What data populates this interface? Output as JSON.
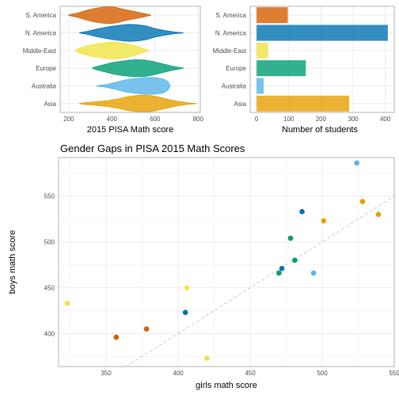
{
  "colors": {
    "region": {
      "S. America": "#D55E00",
      "N. America": "#0072B2",
      "Middle-East": "#F0E442",
      "Europe": "#009E73",
      "Australia": "#56B4E9",
      "Asia": "#E69F00"
    },
    "panel_border": "#b3b3b3",
    "grid": "#ebebeb",
    "diagonal": "#cccccc"
  },
  "chart_data": [
    {
      "type": "violin",
      "orientation": "horizontal",
      "categories": [
        "S. America",
        "N. America",
        "Middle-East",
        "Europe",
        "Australia",
        "Asia"
      ],
      "xlabel": "2015 PISA Math score",
      "xlim": [
        160,
        810
      ],
      "xticks": [
        200,
        400,
        600,
        800
      ],
      "grid": true,
      "series": [
        {
          "category": "S. America",
          "profile": [
            [
              200,
              0.03
            ],
            [
              240,
              0.25
            ],
            [
              280,
              0.55
            ],
            [
              320,
              0.8
            ],
            [
              360,
              0.95
            ],
            [
              390,
              1.0
            ],
            [
              420,
              0.9
            ],
            [
              460,
              0.65
            ],
            [
              500,
              0.45
            ],
            [
              540,
              0.25
            ],
            [
              570,
              0.08
            ],
            [
              580,
              0.02
            ]
          ]
        },
        {
          "category": "N. America",
          "profile": [
            [
              250,
              0.02
            ],
            [
              290,
              0.2
            ],
            [
              330,
              0.45
            ],
            [
              380,
              0.7
            ],
            [
              420,
              0.85
            ],
            [
              460,
              0.97
            ],
            [
              480,
              1.0
            ],
            [
              520,
              0.95
            ],
            [
              560,
              0.8
            ],
            [
              600,
              0.5
            ],
            [
              650,
              0.25
            ],
            [
              690,
              0.1
            ],
            [
              720,
              0.04
            ],
            [
              730,
              0.02
            ]
          ]
        },
        {
          "category": "Middle-East",
          "profile": [
            [
              230,
              0.03
            ],
            [
              250,
              0.3
            ],
            [
              290,
              0.6
            ],
            [
              330,
              0.8
            ],
            [
              370,
              0.93
            ],
            [
              400,
              1.0
            ],
            [
              430,
              0.97
            ],
            [
              470,
              0.8
            ],
            [
              510,
              0.55
            ],
            [
              540,
              0.3
            ],
            [
              560,
              0.1
            ],
            [
              570,
              0.02
            ]
          ]
        },
        {
          "category": "Europe",
          "profile": [
            [
              310,
              0.03
            ],
            [
              330,
              0.2
            ],
            [
              370,
              0.45
            ],
            [
              410,
              0.7
            ],
            [
              450,
              0.85
            ],
            [
              480,
              0.95
            ],
            [
              510,
              1.0
            ],
            [
              550,
              0.97
            ],
            [
              590,
              0.8
            ],
            [
              630,
              0.55
            ],
            [
              670,
              0.3
            ],
            [
              710,
              0.1
            ],
            [
              730,
              0.02
            ]
          ]
        },
        {
          "category": "Australia",
          "profile": [
            [
              330,
              0.02
            ],
            [
              370,
              0.15
            ],
            [
              400,
              0.3
            ],
            [
              430,
              0.5
            ],
            [
              460,
              0.7
            ],
            [
              500,
              0.85
            ],
            [
              540,
              0.95
            ],
            [
              570,
              1.0
            ],
            [
              610,
              0.95
            ],
            [
              640,
              0.8
            ],
            [
              660,
              0.5
            ],
            [
              670,
              0.02
            ]
          ]
        },
        {
          "category": "Asia",
          "profile": [
            [
              250,
              0.02
            ],
            [
              270,
              0.1
            ],
            [
              320,
              0.2
            ],
            [
              380,
              0.35
            ],
            [
              430,
              0.55
            ],
            [
              470,
              0.8
            ],
            [
              510,
              0.95
            ],
            [
              540,
              1.0
            ],
            [
              580,
              0.95
            ],
            [
              620,
              0.75
            ],
            [
              660,
              0.5
            ],
            [
              700,
              0.3
            ],
            [
              750,
              0.1
            ],
            [
              790,
              0.02
            ]
          ]
        }
      ]
    },
    {
      "type": "bar",
      "orientation": "horizontal",
      "categories": [
        "S. America",
        "N. America",
        "Middle-East",
        "Europe",
        "Australia",
        "Asia"
      ],
      "values": [
        97,
        408,
        36,
        153,
        22,
        288
      ],
      "xlabel": "Number of students",
      "xlim": [
        -20,
        428
      ],
      "xticks": [
        0,
        100,
        200,
        300,
        400
      ],
      "grid": true
    },
    {
      "type": "scatter",
      "title": "Gender Gaps in PISA 2015 Math Scores",
      "xlabel": "girls math score",
      "ylabel": "boys math score",
      "xlim": [
        317,
        550
      ],
      "ylim": [
        364,
        592
      ],
      "xticks": [
        350,
        400,
        450,
        500,
        550
      ],
      "yticks": [
        400,
        450,
        500,
        550
      ],
      "grid": true,
      "reference_line": "y = x",
      "points": [
        {
          "region": "Middle-East",
          "x": 323,
          "y": 433
        },
        {
          "region": "S. America",
          "x": 357,
          "y": 396
        },
        {
          "region": "S. America",
          "x": 378,
          "y": 405
        },
        {
          "region": "N. America",
          "x": 405,
          "y": 423
        },
        {
          "region": "Middle-East",
          "x": 406,
          "y": 450
        },
        {
          "region": "Middle-East",
          "x": 420,
          "y": 373
        },
        {
          "region": "Europe",
          "x": 470,
          "y": 466
        },
        {
          "region": "N. America",
          "x": 472,
          "y": 471
        },
        {
          "region": "Europe",
          "x": 478,
          "y": 504
        },
        {
          "region": "Europe",
          "x": 481,
          "y": 480
        },
        {
          "region": "N. America",
          "x": 486,
          "y": 533
        },
        {
          "region": "Australia",
          "x": 494,
          "y": 466
        },
        {
          "region": "Asia",
          "x": 501,
          "y": 523
        },
        {
          "region": "Australia",
          "x": 524,
          "y": 586
        },
        {
          "region": "Asia",
          "x": 528,
          "y": 544
        },
        {
          "region": "Asia",
          "x": 539,
          "y": 530
        }
      ]
    }
  ]
}
